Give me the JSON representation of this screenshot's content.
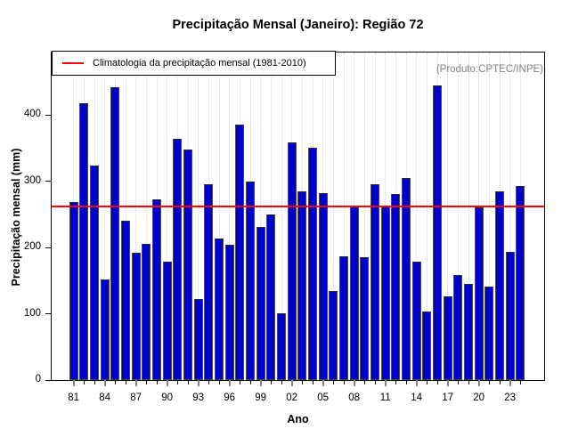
{
  "title": "Precipitação Mensal (Janeiro): Região 72",
  "watermark": "(Produto:CPTEC/INPE)",
  "legend": {
    "label": "Climatologia da precipitação mensal (1981-2010)",
    "line_color": "#FF0000"
  },
  "axes": {
    "x_label": "Ano",
    "y_label": "Precipitação mensal (mm)",
    "y_ticks": [
      0,
      100,
      200,
      300,
      400
    ],
    "x_tick_labels": [
      "81",
      "84",
      "87",
      "90",
      "93",
      "96",
      "99",
      "02",
      "05",
      "08",
      "11",
      "14",
      "17",
      "20",
      "23"
    ]
  },
  "chart_data": {
    "type": "bar",
    "title": "Precipitação Mensal (Janeiro): Região 72",
    "xlabel": "Ano",
    "ylabel": "Precipitação mensal (mm)",
    "ylim": [
      0,
      494
    ],
    "grid": "vertical-dotted",
    "legend_position": "top-left",
    "bar_color": "#0000CD",
    "climatology_value": 262,
    "climatology_label": "Climatologia da precipitação mensal (1981-2010)",
    "categories": [
      "81",
      "82",
      "83",
      "84",
      "85",
      "86",
      "87",
      "88",
      "89",
      "90",
      "91",
      "92",
      "93",
      "94",
      "95",
      "96",
      "97",
      "98",
      "99",
      "00",
      "01",
      "02",
      "03",
      "04",
      "05",
      "06",
      "07",
      "08",
      "09",
      "10",
      "11",
      "12",
      "13",
      "14",
      "15",
      "16",
      "17",
      "18",
      "19",
      "20",
      "21",
      "22",
      "23",
      "24"
    ],
    "values": [
      268,
      418,
      324,
      152,
      442,
      240,
      192,
      206,
      273,
      178,
      364,
      348,
      122,
      296,
      213,
      204,
      385,
      300,
      231,
      250,
      101,
      358,
      284,
      350,
      282,
      134,
      186,
      262,
      185,
      296,
      262,
      280,
      305,
      178,
      103,
      445,
      126,
      159,
      145,
      260,
      141,
      285,
      194,
      293
    ]
  }
}
